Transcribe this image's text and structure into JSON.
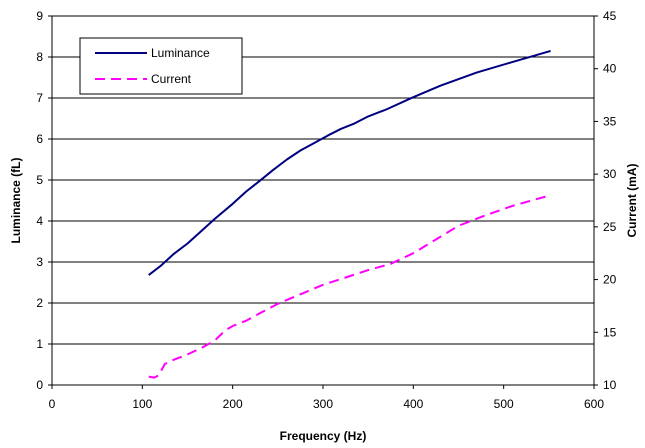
{
  "chart_data": {
    "type": "line",
    "xlabel": "Frequency (Hz)",
    "ylabel": "Luminance (fL)",
    "y2label": "Current (mA)",
    "xlim": [
      0,
      600
    ],
    "ylim": [
      0,
      9
    ],
    "y2lim": [
      10,
      45
    ],
    "xticks": [
      "0",
      "100",
      "200",
      "300",
      "400",
      "500",
      "600"
    ],
    "yticks": [
      "0",
      "1",
      "2",
      "3",
      "4",
      "5",
      "6",
      "7",
      "8",
      "9"
    ],
    "y2ticks": [
      "10",
      "15",
      "20",
      "25",
      "30",
      "35",
      "40",
      "45"
    ],
    "grid": "horizontal",
    "legend_position": "top-left",
    "series": [
      {
        "name": "Luminance",
        "axis": "left",
        "color": "#000080",
        "style": "solid",
        "x": [
          107,
          120,
          135,
          150,
          165,
          180,
          200,
          215,
          230,
          245,
          260,
          275,
          290,
          305,
          320,
          335,
          350,
          370,
          400,
          430,
          470,
          510,
          552
        ],
        "y": [
          2.68,
          2.9,
          3.2,
          3.45,
          3.75,
          4.05,
          4.42,
          4.72,
          4.98,
          5.25,
          5.5,
          5.72,
          5.9,
          6.08,
          6.25,
          6.38,
          6.55,
          6.72,
          7.02,
          7.3,
          7.62,
          7.88,
          8.15
        ]
      },
      {
        "name": "Current",
        "axis": "right",
        "color": "#FF00FF",
        "style": "dashed",
        "x": [
          107,
          113,
          118,
          125,
          135,
          150,
          165,
          180,
          192,
          200,
          215,
          230,
          250,
          275,
          300,
          325,
          350,
          375,
          400,
          425,
          450,
          480,
          510,
          552
        ],
        "y": [
          10.8,
          10.7,
          10.9,
          12.0,
          12.4,
          12.9,
          13.5,
          14.2,
          15.2,
          15.6,
          16.1,
          16.8,
          17.7,
          18.6,
          19.5,
          20.2,
          20.9,
          21.5,
          22.5,
          23.8,
          25.1,
          26.1,
          27.0,
          28.0
        ]
      }
    ]
  }
}
